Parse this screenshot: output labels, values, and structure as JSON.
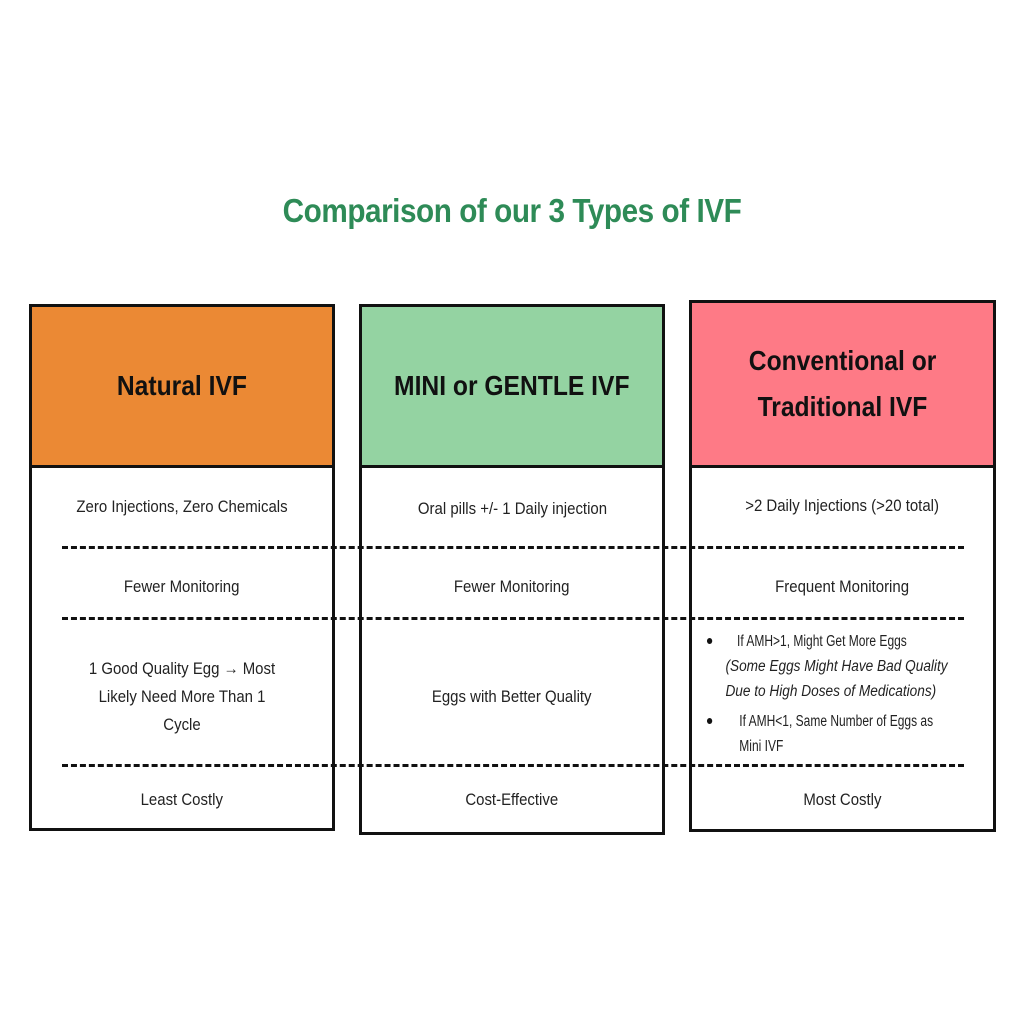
{
  "title": "Comparison of our 3 Types of IVF",
  "colors": {
    "title": "#2e8b57",
    "natural": "#eb8934",
    "mini": "#94d3a2",
    "conventional": "#fe7a86"
  },
  "columns": [
    {
      "header": "Natural IVF",
      "injections": "Zero Injections, Zero Chemicals",
      "monitoring": "Fewer Monitoring",
      "eggs": "1 Good Quality Egg → Most Likely Need More Than 1 Cycle",
      "cost": "Least Costly"
    },
    {
      "header": "MINI or GENTLE IVF",
      "injections": "Oral pills +/- 1 Daily injection",
      "monitoring": "Fewer Monitoring",
      "eggs": "Eggs with Better Quality",
      "cost": "Cost-Effective"
    },
    {
      "header_line1": "Conventional or",
      "header_line2": "Traditional IVF",
      "injections": ">2 Daily Injections (>20 total)",
      "monitoring": "Frequent Monitoring",
      "eggs_bullets": [
        {
          "text": "If AMH>1, Might Get More Eggs ",
          "italic": "(Some Eggs Might Have Bad Quality Due to High Doses of Medications)"
        },
        {
          "text": "If AMH<1, Same Number of Eggs as Mini IVF"
        }
      ],
      "cost": "Most Costly"
    }
  ]
}
